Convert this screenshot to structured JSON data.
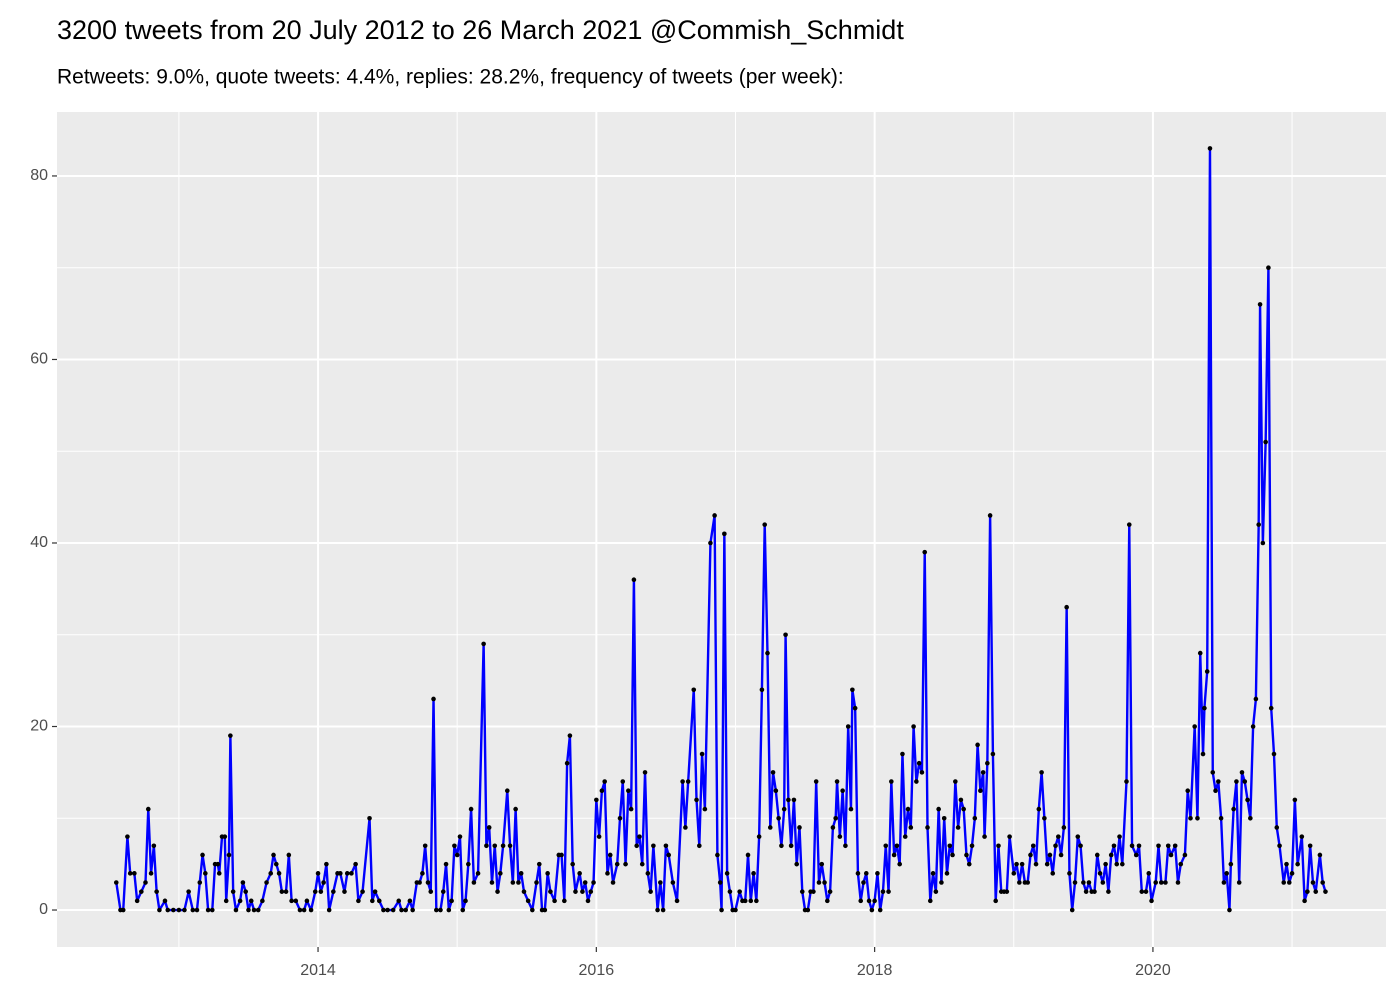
{
  "chart_data": {
    "type": "line",
    "title": "3200 tweets from 20 July 2012 to 26 March 2021 @Commish_Schmidt",
    "subtitle": "Retweets: 9.0%, quote tweets: 4.4%, replies: 28.2%, frequency of tweets (per week):",
    "color": "#0000ff",
    "marker_color": "#000000",
    "grid": true,
    "xlim": [
      2012.124,
      2021.675
    ],
    "xticks": [
      2014,
      2016,
      2018,
      2020
    ],
    "x_minor_ticks": [
      2013,
      2015,
      2017,
      2019,
      2021
    ],
    "ylim": [
      -4.03,
      86.97
    ],
    "yticks": [
      0,
      20,
      40,
      60,
      80
    ],
    "y_minor_ticks": [
      10,
      30,
      50,
      70
    ],
    "x": [
      2012.55,
      2012.58,
      2012.6,
      2012.63,
      2012.65,
      2012.68,
      2012.7,
      2012.73,
      2012.76,
      2012.78,
      2012.8,
      2012.82,
      2012.84,
      2012.86,
      2012.9,
      2012.92,
      2012.96,
      2013.0,
      2013.04,
      2013.07,
      2013.1,
      2013.13,
      2013.15,
      2013.17,
      2013.19,
      2013.21,
      2013.24,
      2013.26,
      2013.28,
      2013.29,
      2013.31,
      2013.33,
      2013.34,
      2013.36,
      2013.37,
      2013.39,
      2013.41,
      2013.44,
      2013.46,
      2013.48,
      2013.5,
      2013.52,
      2013.54,
      2013.57,
      2013.6,
      2013.63,
      2013.66,
      2013.68,
      2013.7,
      2013.72,
      2013.74,
      2013.77,
      2013.79,
      2013.81,
      2013.84,
      2013.87,
      2013.9,
      2013.92,
      2013.95,
      2013.98,
      2014.0,
      2014.02,
      2014.04,
      2014.06,
      2014.08,
      2014.11,
      2014.14,
      2014.16,
      2014.19,
      2014.21,
      2014.24,
      2014.27,
      2014.29,
      2014.32,
      2014.37,
      2014.39,
      2014.41,
      2014.44,
      2014.47,
      2014.5,
      2014.54,
      2014.58,
      2014.6,
      2014.63,
      2014.66,
      2014.68,
      2014.71,
      2014.73,
      2014.75,
      2014.77,
      2014.79,
      2014.81,
      2014.83,
      2014.85,
      2014.88,
      2014.9,
      2014.92,
      2014.94,
      2014.96,
      2014.98,
      2015.0,
      2015.02,
      2015.04,
      2015.06,
      2015.08,
      2015.1,
      2015.12,
      2015.15,
      2015.19,
      2015.21,
      2015.23,
      2015.25,
      2015.27,
      2015.29,
      2015.31,
      2015.33,
      2015.36,
      2015.38,
      2015.4,
      2015.42,
      2015.44,
      2015.46,
      2015.48,
      2015.51,
      2015.54,
      2015.57,
      2015.59,
      2015.61,
      2015.63,
      2015.65,
      2015.67,
      2015.7,
      2015.73,
      2015.75,
      2015.77,
      2015.79,
      2015.81,
      2015.83,
      2015.85,
      2015.88,
      2015.9,
      2015.92,
      2015.94,
      2015.96,
      2015.98,
      2016.0,
      2016.02,
      2016.04,
      2016.06,
      2016.08,
      2016.1,
      2016.12,
      2016.15,
      2016.17,
      2016.19,
      2016.21,
      2016.23,
      2016.25,
      2016.27,
      2016.29,
      2016.31,
      2016.33,
      2016.35,
      2016.37,
      2016.39,
      2016.41,
      2016.44,
      2016.46,
      2016.48,
      2016.5,
      2016.52,
      2016.55,
      2016.58,
      2016.62,
      2016.64,
      2016.66,
      2016.7,
      2016.72,
      2016.74,
      2016.76,
      2016.78,
      2016.82,
      2016.85,
      2016.87,
      2016.89,
      2016.9,
      2016.92,
      2016.94,
      2016.96,
      2016.98,
      2017.0,
      2017.03,
      2017.05,
      2017.07,
      2017.09,
      2017.11,
      2017.13,
      2017.15,
      2017.17,
      2017.19,
      2017.21,
      2017.23,
      2017.25,
      2017.27,
      2017.29,
      2017.31,
      2017.33,
      2017.35,
      2017.36,
      2017.38,
      2017.4,
      2017.42,
      2017.44,
      2017.46,
      2017.48,
      2017.5,
      2017.52,
      2017.54,
      2017.56,
      2017.58,
      2017.6,
      2017.62,
      2017.64,
      2017.66,
      2017.68,
      2017.7,
      2017.72,
      2017.73,
      2017.75,
      2017.77,
      2017.79,
      2017.81,
      2017.83,
      2017.84,
      2017.86,
      2017.88,
      2017.9,
      2017.92,
      2017.94,
      2017.96,
      2017.98,
      2018.0,
      2018.02,
      2018.04,
      2018.06,
      2018.08,
      2018.1,
      2018.12,
      2018.14,
      2018.16,
      2018.18,
      2018.2,
      2018.22,
      2018.24,
      2018.26,
      2018.28,
      2018.3,
      2018.32,
      2018.34,
      2018.36,
      2018.38,
      2018.4,
      2018.42,
      2018.44,
      2018.46,
      2018.48,
      2018.5,
      2018.52,
      2018.54,
      2018.56,
      2018.58,
      2018.6,
      2018.62,
      2018.64,
      2018.66,
      2018.68,
      2018.7,
      2018.72,
      2018.74,
      2018.76,
      2018.78,
      2018.79,
      2018.81,
      2018.83,
      2018.85,
      2018.87,
      2018.89,
      2018.91,
      2018.93,
      2018.95,
      2018.97,
      2019.0,
      2019.02,
      2019.04,
      2019.06,
      2019.08,
      2019.1,
      2019.12,
      2019.14,
      2019.16,
      2019.18,
      2019.2,
      2019.22,
      2019.24,
      2019.26,
      2019.28,
      2019.3,
      2019.32,
      2019.34,
      2019.36,
      2019.38,
      2019.4,
      2019.42,
      2019.44,
      2019.46,
      2019.48,
      2019.5,
      2019.52,
      2019.54,
      2019.56,
      2019.58,
      2019.6,
      2019.62,
      2019.64,
      2019.66,
      2019.68,
      2019.7,
      2019.72,
      2019.74,
      2019.76,
      2019.78,
      2019.81,
      2019.83,
      2019.85,
      2019.88,
      2019.9,
      2019.92,
      2019.95,
      2019.97,
      2019.99,
      2020.02,
      2020.04,
      2020.06,
      2020.09,
      2020.11,
      2020.13,
      2020.16,
      2020.18,
      2020.2,
      2020.23,
      2020.25,
      2020.27,
      2020.3,
      2020.32,
      2020.34,
      2020.36,
      2020.37,
      2020.39,
      2020.41,
      2020.43,
      2020.45,
      2020.47,
      2020.49,
      2020.51,
      2020.53,
      2020.55,
      2020.56,
      2020.58,
      2020.6,
      2020.62,
      2020.64,
      2020.66,
      2020.68,
      2020.7,
      2020.72,
      2020.74,
      2020.76,
      2020.77,
      2020.79,
      2020.81,
      2020.83,
      2020.85,
      2020.87,
      2020.89,
      2020.91,
      2020.94,
      2020.96,
      2020.98,
      2021.0,
      2021.02,
      2021.04,
      2021.07,
      2021.09,
      2021.11,
      2021.13,
      2021.15,
      2021.17,
      2021.2,
      2021.22,
      2021.24
    ],
    "values": [
      3,
      0,
      0,
      8,
      4,
      4,
      1,
      2,
      3,
      11,
      4,
      7,
      2,
      0,
      1,
      0,
      0,
      0,
      0,
      2,
      0,
      0,
      3,
      6,
      4,
      0,
      0,
      5,
      5,
      4,
      8,
      8,
      1,
      6,
      19,
      2,
      0,
      1,
      3,
      2,
      0,
      1,
      0,
      0,
      1,
      3,
      4,
      6,
      5,
      4,
      2,
      2,
      6,
      1,
      1,
      0,
      0,
      1,
      0,
      2,
      4,
      2,
      3,
      5,
      0,
      2,
      4,
      4,
      2,
      4,
      4,
      5,
      1,
      2,
      10,
      1,
      2,
      1,
      0,
      0,
      0,
      1,
      0,
      0,
      1,
      0,
      3,
      3,
      4,
      7,
      3,
      2,
      23,
      0,
      0,
      2,
      5,
      0,
      1,
      7,
      6,
      8,
      0,
      1,
      5,
      11,
      3,
      4,
      29,
      7,
      9,
      3,
      7,
      2,
      4,
      7,
      13,
      7,
      3,
      11,
      3,
      4,
      2,
      1,
      0,
      3,
      5,
      0,
      0,
      4,
      2,
      1,
      6,
      6,
      1,
      16,
      19,
      5,
      2,
      4,
      2,
      3,
      1,
      2,
      3,
      12,
      8,
      13,
      14,
      4,
      6,
      3,
      5,
      10,
      14,
      5,
      13,
      11,
      36,
      7,
      8,
      5,
      15,
      4,
      2,
      7,
      0,
      3,
      0,
      7,
      6,
      3,
      1,
      14,
      9,
      14,
      24,
      12,
      7,
      17,
      11,
      40,
      43,
      6,
      3,
      0,
      41,
      4,
      2,
      0,
      0,
      2,
      1,
      1,
      6,
      1,
      4,
      1,
      8,
      24,
      42,
      28,
      9,
      15,
      13,
      10,
      7,
      11,
      30,
      12,
      7,
      12,
      5,
      9,
      2,
      0,
      0,
      2,
      2,
      14,
      3,
      5,
      3,
      1,
      2,
      9,
      10,
      14,
      8,
      13,
      7,
      20,
      11,
      24,
      22,
      4,
      1,
      3,
      4,
      1,
      0,
      1,
      4,
      0,
      2,
      7,
      2,
      14,
      6,
      7,
      5,
      17,
      8,
      11,
      9,
      20,
      14,
      16,
      15,
      39,
      9,
      1,
      4,
      2,
      11,
      3,
      10,
      4,
      7,
      6,
      14,
      9,
      12,
      11,
      6,
      5,
      7,
      10,
      18,
      13,
      15,
      8,
      16,
      43,
      17,
      1,
      7,
      2,
      2,
      2,
      8,
      4,
      5,
      3,
      5,
      3,
      3,
      6,
      7,
      5,
      11,
      15,
      10,
      5,
      6,
      4,
      7,
      8,
      6,
      9,
      33,
      4,
      0,
      3,
      8,
      7,
      3,
      2,
      3,
      2,
      2,
      6,
      4,
      3,
      5,
      2,
      6,
      7,
      5,
      8,
      5,
      14,
      42,
      7,
      6,
      7,
      2,
      2,
      4,
      1,
      3,
      7,
      3,
      3,
      7,
      6,
      7,
      3,
      5,
      6,
      13,
      10,
      20,
      10,
      28,
      17,
      22,
      26,
      83,
      15,
      13,
      14,
      10,
      3,
      4,
      0,
      5,
      11,
      14,
      3,
      15,
      14,
      12,
      10,
      20,
      23,
      42,
      66,
      40,
      51,
      70,
      22,
      17,
      9,
      7,
      3,
      5,
      3,
      4,
      12,
      5,
      8,
      1,
      2,
      7,
      3,
      2,
      6,
      3,
      2
    ]
  }
}
